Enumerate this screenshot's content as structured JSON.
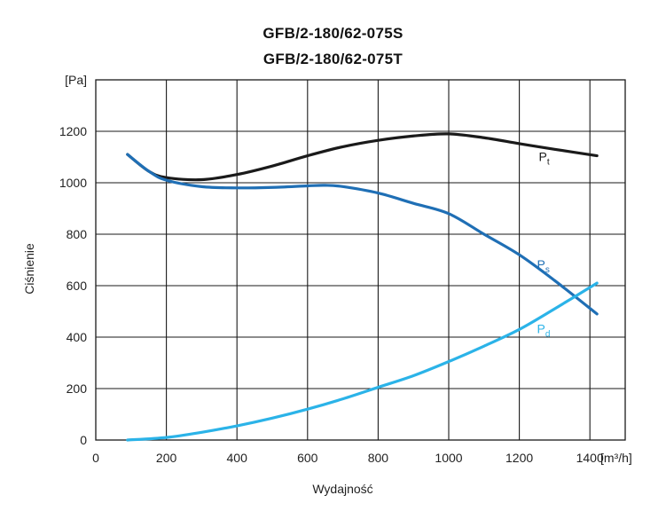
{
  "chart_data": {
    "type": "line",
    "title": "GFB/2-180/62-075S",
    "subtitle": "GFB/2-180/62-075T",
    "xlabel": "Wydajność",
    "ylabel": "Ciśnienie",
    "x_unit": "[m³/h]",
    "y_unit": "[Pa]",
    "xlim": [
      0,
      1500
    ],
    "ylim": [
      0,
      1400
    ],
    "x_ticks": [
      0,
      200,
      400,
      600,
      800,
      1000,
      1200,
      1400
    ],
    "y_ticks": [
      0,
      200,
      400,
      600,
      800,
      1000,
      1200
    ],
    "grid": true,
    "series": [
      {
        "name": "Pt",
        "label_main": "P",
        "label_sub": "t",
        "color": "#1a1a1a",
        "x": [
          90,
          150,
          200,
          300,
          400,
          500,
          600,
          700,
          800,
          900,
          1000,
          1100,
          1200,
          1300,
          1420
        ],
        "y": [
          1110,
          1045,
          1020,
          1012,
          1032,
          1065,
          1105,
          1140,
          1165,
          1182,
          1190,
          1175,
          1152,
          1130,
          1105
        ]
      },
      {
        "name": "Ps",
        "label_main": "P",
        "label_sub": "s",
        "color": "#1f6fb5",
        "x": [
          90,
          150,
          200,
          300,
          400,
          500,
          600,
          650,
          700,
          800,
          900,
          1000,
          1100,
          1200,
          1300,
          1420
        ],
        "y": [
          1110,
          1045,
          1010,
          985,
          980,
          982,
          988,
          990,
          985,
          960,
          920,
          880,
          800,
          720,
          620,
          490
        ]
      },
      {
        "name": "Pd",
        "label_main": "P",
        "label_sub": "d",
        "color": "#2bb3e8",
        "x": [
          90,
          200,
          300,
          400,
          500,
          600,
          700,
          800,
          900,
          1000,
          1100,
          1200,
          1300,
          1420
        ],
        "y": [
          0,
          10,
          30,
          55,
          85,
          120,
          160,
          205,
          250,
          305,
          365,
          430,
          510,
          610
        ]
      }
    ]
  }
}
